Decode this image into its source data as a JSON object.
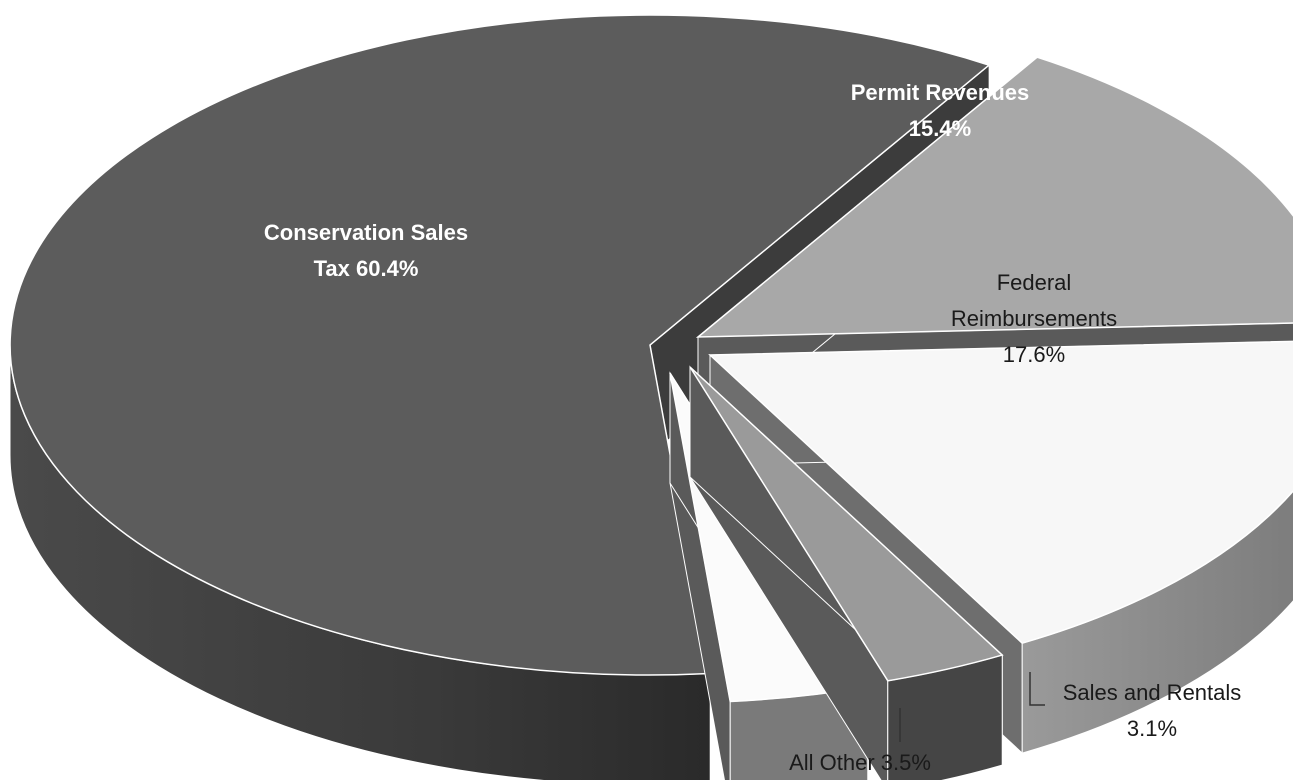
{
  "chart_data": {
    "type": "pie",
    "style": "3d-exploded",
    "slices": [
      {
        "label": "Conservation Sales Tax",
        "value": 60.4,
        "color": "#5c5c5c"
      },
      {
        "label": "Permit Revenues",
        "value": 15.4,
        "color": "#a8a8a8"
      },
      {
        "label": "Federal Reimbursements",
        "value": 17.6,
        "color": "#f7f7f7"
      },
      {
        "label": "Sales and Rentals",
        "value": 3.1,
        "color": "#9a9a9a"
      },
      {
        "label": "All Other",
        "value": 3.5,
        "color": "#fbfbfb"
      }
    ],
    "data_labels": [
      {
        "lines": [
          "Conservation Sales",
          "Tax 60.4%"
        ]
      },
      {
        "lines": [
          "Permit Revenues",
          "15.4%"
        ]
      },
      {
        "lines": [
          "Federal",
          "Reimbursements",
          "17.6%"
        ]
      },
      {
        "lines": [
          "Sales and Rentals",
          "3.1%"
        ]
      },
      {
        "lines": [
          "All Other 3.5%"
        ]
      }
    ]
  }
}
